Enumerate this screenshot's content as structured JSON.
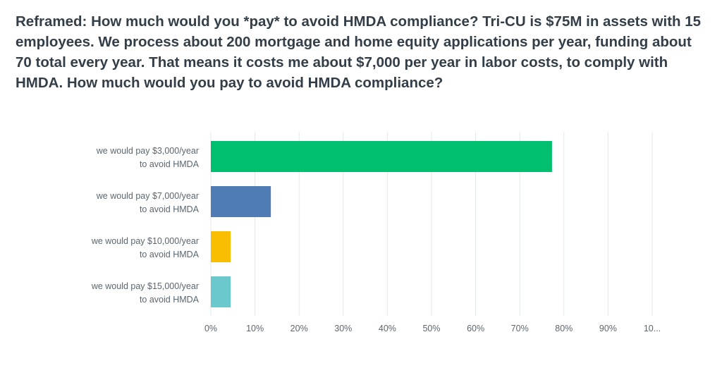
{
  "question": {
    "title": "Reframed: How much would you *pay* to avoid HMDA compliance? Tri-CU is $75M in assets with 15 employees. We process about 200 mortgage and home equity applications per year, funding about 70 total every year. That means it costs me about $7,000 per year in labor costs, to comply with HMDA. How much would you pay to avoid HMDA compliance?"
  },
  "chart_data": {
    "type": "bar",
    "orientation": "horizontal",
    "categories": [
      [
        "we would pay $3,000/year",
        "to avoid HMDA"
      ],
      [
        "we would pay $7,000/year",
        "to avoid HMDA"
      ],
      [
        "we would pay $10,000/year",
        "to avoid HMDA"
      ],
      [
        "we would pay $15,000/year",
        "to avoid HMDA"
      ]
    ],
    "values": [
      77.3,
      13.6,
      4.5,
      4.5
    ],
    "colors": [
      "#00bf6f",
      "#507cb6",
      "#f9be00",
      "#6bc8cd"
    ],
    "xlim": [
      0,
      100
    ],
    "ticks": [
      "0%",
      "10%",
      "20%",
      "30%",
      "40%",
      "50%",
      "60%",
      "70%",
      "80%",
      "90%",
      "10..."
    ],
    "grid": true,
    "legend": "none"
  }
}
